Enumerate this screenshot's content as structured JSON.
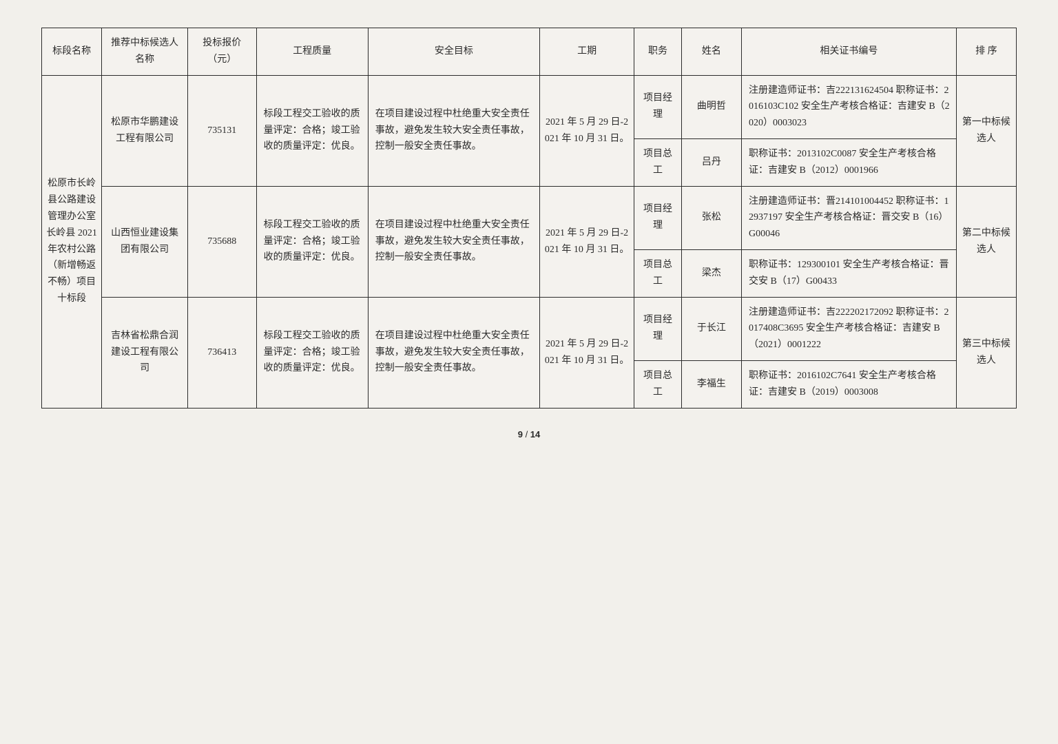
{
  "headers": {
    "c0": "标段名称",
    "c1": "推荐中标候选人名称",
    "c2": "投标报价（元）",
    "c3": "工程质量",
    "c4": "安全目标",
    "c5": "工期",
    "c6": "职务",
    "c7": "姓名",
    "c8": "相关证书编号",
    "c9": "排 序"
  },
  "section_name": "松原市长岭县公路建设管理办公室长岭县 2021 年农村公路（新增畅返不畅）项目十标段",
  "quality_text": "标段工程交工验收的质量评定：合格；竣工验收的质量评定：优良。",
  "safety_text": "在项目建设过程中杜绝重大安全责任事故，避免发生较大安全责任事故，控制一般安全责任事故。",
  "period_text": "2021 年 5 月 29 日-2021 年 10 月 31 日。",
  "bidders": [
    {
      "company": "松原市华鹏建设工程有限公司",
      "price": "735131",
      "rank": "第一中标候选人",
      "roles": [
        {
          "role": "项目经理",
          "name": "曲明哲",
          "cert": "注册建造师证书：吉222131624504\n职称证书：2016103C102\n安全生产考核合格证：吉建安 B（2020）0003023"
        },
        {
          "role": "项目总工",
          "name": "吕丹",
          "cert": "职称证书：2013102C0087\n安全生产考核合格证：吉建安 B（2012）0001966"
        }
      ]
    },
    {
      "company": "山西恒业建设集团有限公司",
      "price": "735688",
      "rank": "第二中标候选人",
      "roles": [
        {
          "role": "项目经理",
          "name": "张松",
          "cert": "注册建造师证书：晋214101004452\n职称证书：12937197\n安全生产考核合格证：晋交安 B（16）G00046"
        },
        {
          "role": "项目总工",
          "name": "梁杰",
          "cert": "职称证书：129300101\n安全生产考核合格证：晋交安 B（17）G00433"
        }
      ]
    },
    {
      "company": "吉林省松鼎合润建设工程有限公司",
      "price": "736413",
      "rank": "第三中标候选人",
      "roles": [
        {
          "role": "项目经理",
          "name": "于长江",
          "cert": "注册建造师证书：吉222202172092\n职称证书：2017408C3695\n安全生产考核合格证：吉建安 B（2021）0001222"
        },
        {
          "role": "项目总工",
          "name": "李福生",
          "cert": "职称证书：2016102C7641\n安全生产考核合格证：吉建安 B（2019）0003008"
        }
      ]
    }
  ],
  "footer": {
    "page": "9",
    "sep": " / ",
    "total": "14"
  },
  "colwidths": [
    "70",
    "100",
    "80",
    "130",
    "200",
    "110",
    "55",
    "70",
    "250",
    "70"
  ]
}
